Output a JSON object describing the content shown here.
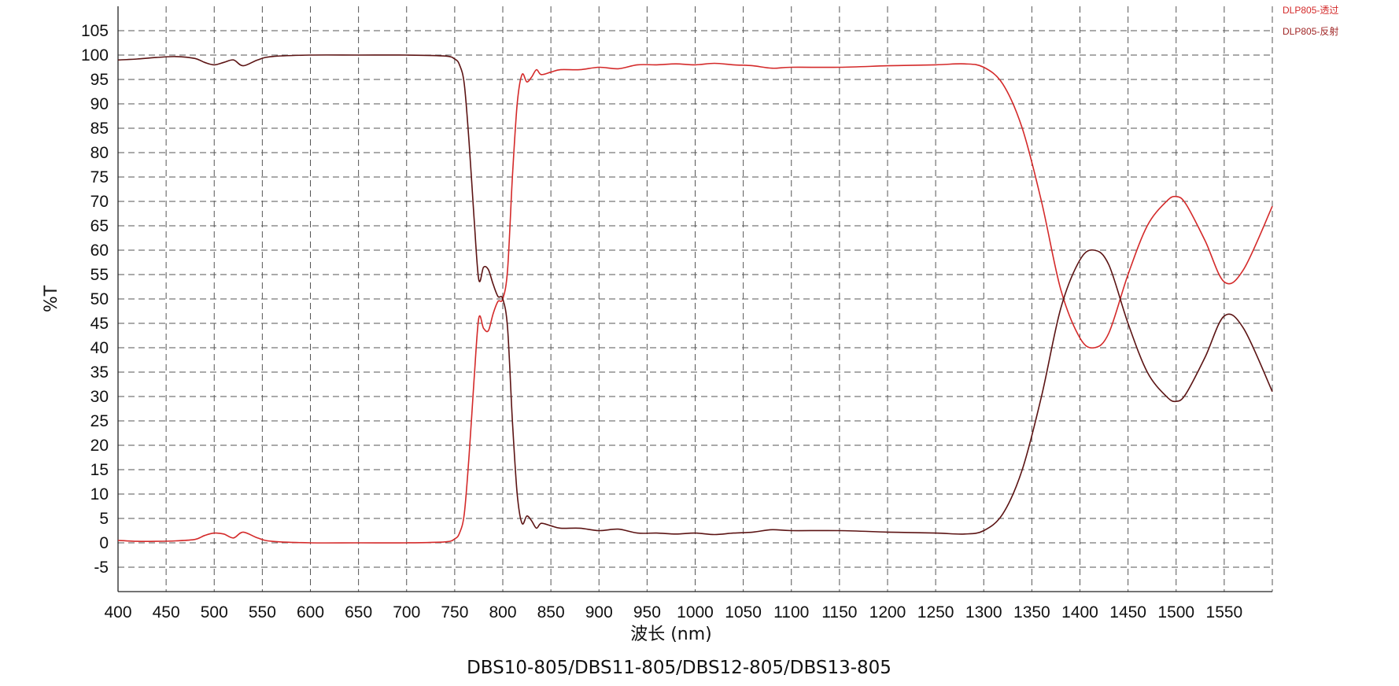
{
  "chart_data": {
    "type": "line",
    "title": "DBS10-805/DBS11-805/DBS12-805/DBS13-805",
    "xlabel": "波长 (nm)",
    "ylabel": "%T",
    "xlim": [
      400,
      1600
    ],
    "ylim": [
      -10,
      110
    ],
    "x_ticks": [
      400,
      450,
      500,
      550,
      600,
      650,
      700,
      750,
      800,
      850,
      900,
      950,
      1000,
      1050,
      1100,
      1150,
      1200,
      1250,
      1300,
      1350,
      1400,
      1450,
      1500,
      1550
    ],
    "y_ticks": [
      -5,
      0,
      5,
      10,
      15,
      20,
      25,
      30,
      35,
      40,
      45,
      50,
      55,
      60,
      65,
      70,
      75,
      80,
      85,
      90,
      95,
      100,
      105
    ],
    "grid": true,
    "legend_position": "top-right",
    "series": [
      {
        "name": "DLP805-透过",
        "color": "#d42a2a",
        "x": [
          400,
          420,
          440,
          460,
          480,
          490,
          500,
          510,
          520,
          530,
          545,
          560,
          600,
          650,
          700,
          740,
          750,
          755,
          760,
          765,
          770,
          775,
          780,
          785,
          790,
          795,
          800,
          805,
          810,
          815,
          820,
          825,
          830,
          835,
          840,
          850,
          860,
          880,
          900,
          920,
          940,
          960,
          980,
          1000,
          1020,
          1040,
          1060,
          1080,
          1100,
          1150,
          1200,
          1250,
          1280,
          1300,
          1320,
          1340,
          1360,
          1380,
          1400,
          1415,
          1430,
          1450,
          1470,
          1490,
          1500,
          1510,
          1530,
          1550,
          1570,
          1600
        ],
        "y": [
          0.5,
          0.3,
          0.3,
          0.4,
          0.7,
          1.5,
          2.0,
          1.8,
          1.0,
          2.2,
          1.0,
          0.3,
          0.0,
          0.0,
          0.0,
          0.2,
          0.8,
          2.0,
          6.0,
          18.0,
          33.0,
          46.0,
          44.0,
          43.5,
          47.0,
          49.5,
          50.0,
          56.0,
          75.0,
          90.0,
          96.0,
          94.5,
          95.5,
          97.0,
          96.0,
          96.5,
          97.0,
          97.0,
          97.5,
          97.2,
          98.0,
          98.0,
          98.2,
          98.0,
          98.3,
          98.0,
          97.8,
          97.3,
          97.5,
          97.5,
          97.8,
          98.0,
          98.2,
          97.5,
          94.0,
          85.0,
          70.0,
          52.0,
          42.0,
          40.0,
          43.0,
          55.0,
          65.0,
          70.0,
          71.0,
          69.5,
          62.0,
          53.5,
          56.0,
          69.0
        ]
      },
      {
        "name": "DLP805-反射",
        "color": "#5c1414",
        "x": [
          400,
          420,
          440,
          460,
          480,
          490,
          500,
          510,
          520,
          530,
          545,
          560,
          600,
          650,
          700,
          740,
          750,
          755,
          760,
          765,
          770,
          775,
          780,
          785,
          790,
          795,
          800,
          805,
          810,
          815,
          820,
          825,
          830,
          835,
          840,
          850,
          860,
          880,
          900,
          920,
          940,
          960,
          980,
          1000,
          1020,
          1040,
          1060,
          1080,
          1100,
          1150,
          1200,
          1250,
          1280,
          1300,
          1320,
          1340,
          1360,
          1380,
          1400,
          1415,
          1430,
          1450,
          1470,
          1490,
          1500,
          1510,
          1530,
          1550,
          1570,
          1600
        ],
        "y": [
          99.0,
          99.2,
          99.5,
          99.7,
          99.3,
          98.5,
          98.0,
          98.5,
          99.0,
          97.8,
          99.0,
          99.7,
          100.0,
          100.0,
          100.0,
          99.8,
          99.2,
          98.0,
          94.0,
          82.0,
          67.0,
          54.0,
          56.5,
          56.0,
          53.0,
          50.5,
          50.0,
          44.0,
          25.0,
          10.0,
          4.0,
          5.5,
          4.5,
          3.0,
          4.0,
          3.5,
          3.0,
          3.0,
          2.5,
          2.8,
          2.0,
          2.0,
          1.8,
          2.0,
          1.7,
          2.0,
          2.2,
          2.7,
          2.5,
          2.5,
          2.2,
          2.0,
          1.8,
          2.5,
          6.0,
          15.0,
          30.0,
          48.0,
          58.0,
          60.0,
          57.0,
          45.0,
          35.0,
          30.0,
          29.0,
          30.5,
          38.0,
          46.5,
          44.0,
          31.0
        ]
      }
    ]
  }
}
